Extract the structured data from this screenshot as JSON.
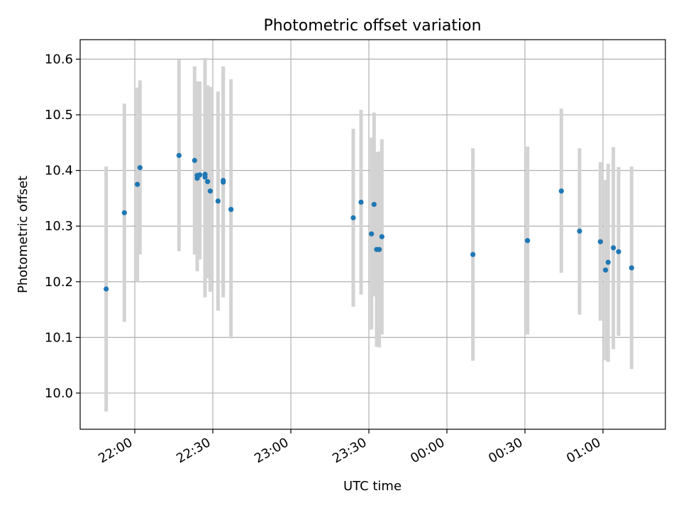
{
  "chart_data": {
    "type": "scatter",
    "title": "Photometric offset variation",
    "xlabel": "UTC time",
    "ylabel": "Photometric offset",
    "x_tick_labels": [
      "22:00",
      "22:30",
      "23:00",
      "23:30",
      "00:00",
      "00:30",
      "01:00"
    ],
    "y_tick_labels": [
      "10.0",
      "10.1",
      "10.2",
      "10.3",
      "10.4",
      "10.5",
      "10.6"
    ],
    "x_ticks": [
      "22:00",
      "22:30",
      "23:00",
      "23:30",
      "00:00",
      "00:30",
      "01:00"
    ],
    "y_ticks": [
      10.0,
      10.1,
      10.2,
      10.3,
      10.4,
      10.5,
      10.6
    ],
    "xlim": [
      "21:39",
      "01:24"
    ],
    "ylim": [
      9.935,
      10.635
    ],
    "grid": true,
    "colors": {
      "points": "#1f77b4",
      "errorbars": "#d3d3d3"
    },
    "series": [
      {
        "points": [
          {
            "x": "21:49",
            "y": 10.187,
            "ylow": 9.967,
            "yhigh": 10.407
          },
          {
            "x": "21:56",
            "y": 10.324,
            "ylow": 10.128,
            "yhigh": 10.52
          },
          {
            "x": "22:01",
            "y": 10.375,
            "ylow": 10.2,
            "yhigh": 10.549
          },
          {
            "x": "22:02",
            "y": 10.405,
            "ylow": 10.249,
            "yhigh": 10.562
          },
          {
            "x": "22:17",
            "y": 10.427,
            "ylow": 10.255,
            "yhigh": 10.599
          },
          {
            "x": "22:23",
            "y": 10.418,
            "ylow": 10.249,
            "yhigh": 10.587
          },
          {
            "x": "22:24",
            "y": 10.386,
            "ylow": 10.219,
            "yhigh": 10.56
          },
          {
            "x": "22:24",
            "y": 10.391,
            "ylow": 10.223,
            "yhigh": 10.56
          },
          {
            "x": "22:25",
            "y": 10.392,
            "ylow": 10.24,
            "yhigh": 10.56
          },
          {
            "x": "22:27",
            "y": 10.393,
            "ylow": 10.211,
            "yhigh": 10.58
          },
          {
            "x": "22:27",
            "y": 10.388,
            "ylow": 10.172,
            "yhigh": 10.602
          },
          {
            "x": "22:28",
            "y": 10.38,
            "ylow": 10.206,
            "yhigh": 10.553
          },
          {
            "x": "22:29",
            "y": 10.363,
            "ylow": 10.182,
            "yhigh": 10.55
          },
          {
            "x": "22:32",
            "y": 10.345,
            "ylow": 10.148,
            "yhigh": 10.542
          },
          {
            "x": "22:34",
            "y": 10.379,
            "ylow": 10.172,
            "yhigh": 10.587
          },
          {
            "x": "22:34",
            "y": 10.382,
            "ylow": 10.181,
            "yhigh": 10.584
          },
          {
            "x": "22:37",
            "y": 10.33,
            "ylow": 10.098,
            "yhigh": 10.564
          },
          {
            "x": "23:24",
            "y": 10.315,
            "ylow": 10.155,
            "yhigh": 10.475
          },
          {
            "x": "23:27",
            "y": 10.343,
            "ylow": 10.177,
            "yhigh": 10.509
          },
          {
            "x": "23:31",
            "y": 10.286,
            "ylow": 10.114,
            "yhigh": 10.459
          },
          {
            "x": "23:32",
            "y": 10.339,
            "ylow": 10.174,
            "yhigh": 10.504
          },
          {
            "x": "23:33",
            "y": 10.258,
            "ylow": 10.083,
            "yhigh": 10.433
          },
          {
            "x": "23:34",
            "y": 10.258,
            "ylow": 10.082,
            "yhigh": 10.434
          },
          {
            "x": "23:35",
            "y": 10.281,
            "ylow": 10.105,
            "yhigh": 10.456
          },
          {
            "x": "00:10",
            "y": 10.249,
            "ylow": 10.058,
            "yhigh": 10.44
          },
          {
            "x": "00:31",
            "y": 10.274,
            "ylow": 10.105,
            "yhigh": 10.443
          },
          {
            "x": "00:44",
            "y": 10.363,
            "ylow": 10.216,
            "yhigh": 10.511
          },
          {
            "x": "00:51",
            "y": 10.291,
            "ylow": 10.141,
            "yhigh": 10.44
          },
          {
            "x": "00:59",
            "y": 10.272,
            "ylow": 10.13,
            "yhigh": 10.415
          },
          {
            "x": "01:01",
            "y": 10.221,
            "ylow": 10.059,
            "yhigh": 10.383
          },
          {
            "x": "01:02",
            "y": 10.235,
            "ylow": 10.056,
            "yhigh": 10.412
          },
          {
            "x": "01:04",
            "y": 10.261,
            "ylow": 10.079,
            "yhigh": 10.442
          },
          {
            "x": "01:06",
            "y": 10.254,
            "ylow": 10.103,
            "yhigh": 10.406
          },
          {
            "x": "01:11",
            "y": 10.225,
            "ylow": 10.043,
            "yhigh": 10.407
          }
        ]
      }
    ]
  }
}
